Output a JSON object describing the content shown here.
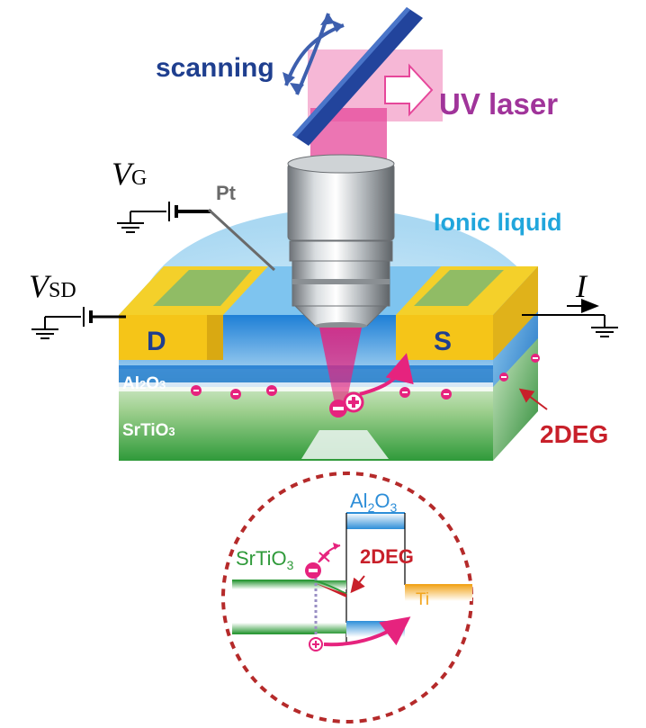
{
  "labels": {
    "scanning": "scanning",
    "uv_laser": "UV laser",
    "ionic_liquid": "Ionic liquid",
    "pt": "Pt",
    "vg_main": "V",
    "vg_sub": "G",
    "vsd_main": "V",
    "vsd_sub": "SD",
    "current": "I",
    "drain": "D",
    "source": "S",
    "al2o3": {
      "a": "Al",
      "b": "2",
      "c": "O",
      "d": "3"
    },
    "srtio3": {
      "a": "SrTiO",
      "b": "3"
    },
    "twodeg": "2DEG"
  },
  "inset": {
    "al2o3": {
      "a": "Al",
      "b": "2",
      "c": "O",
      "d": "3"
    },
    "srtio3": {
      "a": "SrTiO",
      "b": "3"
    },
    "ti": "Ti",
    "twodeg": "2DEG"
  },
  "colors": {
    "scanning": "#1f3f8f",
    "uv_laser": "#a0349a",
    "ionic_liquid": "#21a6dc",
    "pt": "#6a6a6a",
    "twodeg": "#c8202a",
    "magenta": "#e6237e",
    "gold": "#f5c518",
    "al2o3": "#2d8ed8",
    "srtio3": "#3a9a3c",
    "ti": "#f2a51e",
    "dashed_circle": "#b52a2a"
  }
}
